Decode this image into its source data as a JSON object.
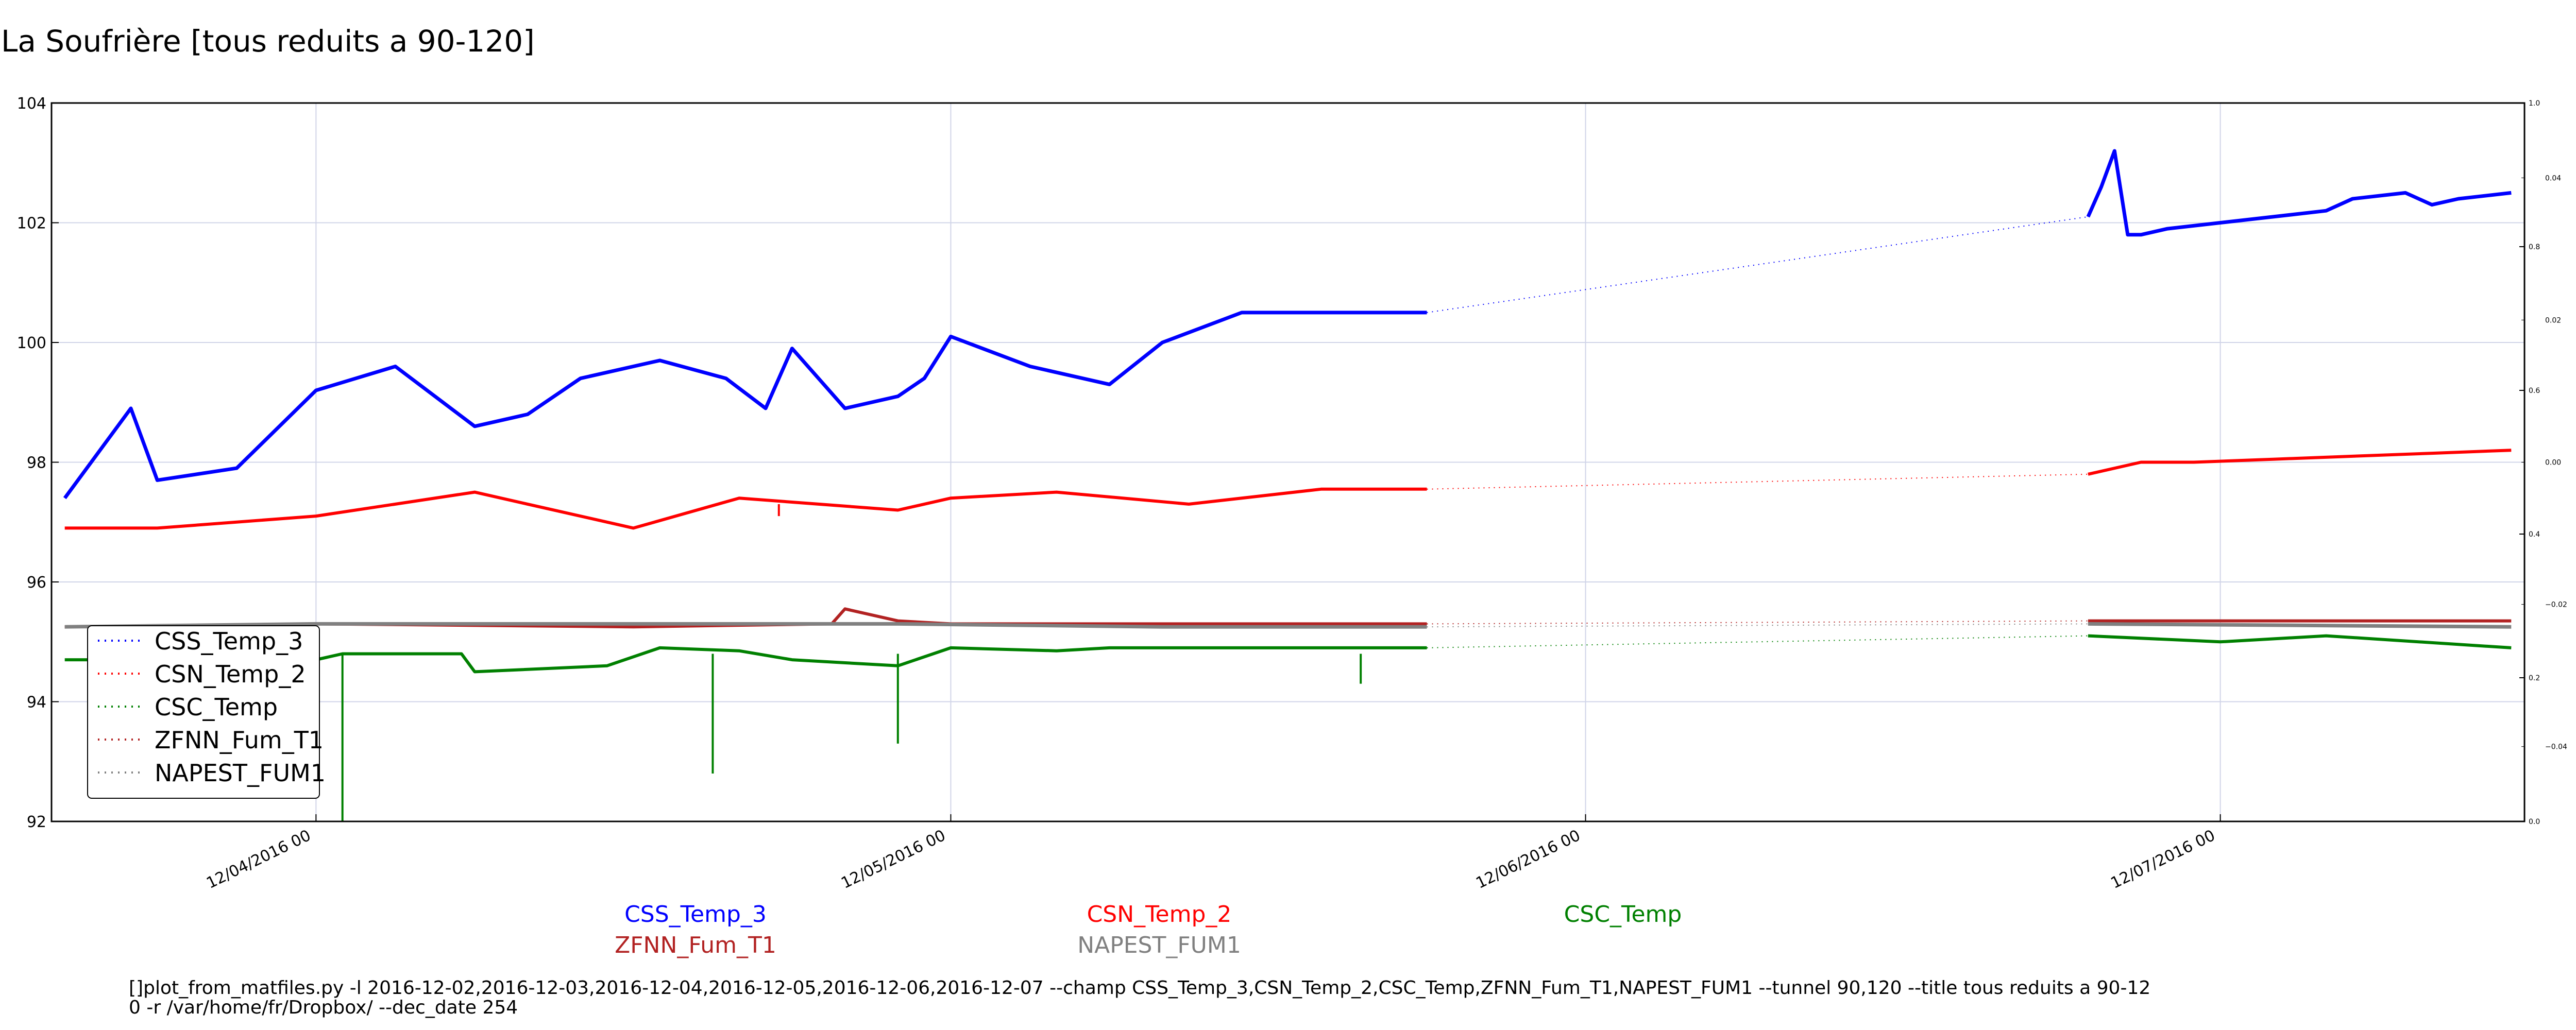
{
  "chart_data": {
    "type": "line",
    "title": "La Soufrière [tous reduits a 90-120]",
    "xlabel": "",
    "ylabel": "",
    "xlim": [
      "2016-12-03 14:00",
      "2016-12-07 11:30"
    ],
    "ylim": [
      92,
      104
    ],
    "yticks": [
      "92",
      "94",
      "96",
      "98",
      "100",
      "102",
      "104"
    ],
    "xticks": [
      {
        "x": "2016-12-04 00:00",
        "label": "12/04/2016 00"
      },
      {
        "x": "2016-12-05 00:00",
        "label": "12/05/2016 00"
      },
      {
        "x": "2016-12-06 00:00",
        "label": "12/06/2016 00"
      },
      {
        "x": "2016-12-07 00:00",
        "label": "12/07/2016 00"
      }
    ],
    "right_axis": {
      "outer_ticks": [
        "0.0",
        "0.2",
        "0.4",
        "0.6",
        "0.8",
        "1.0"
      ],
      "inner_ticks": [
        "−0.04",
        "−0.02",
        "0.00",
        "0.02",
        "0.04"
      ]
    },
    "grid": true,
    "legend_position": "lower-left",
    "gap": [
      "2016-12-05 18:00",
      "2016-12-06 19:30"
    ],
    "series": [
      {
        "name": "CSS_Temp_3",
        "color": "#0000ff",
        "x": [
          "2016-12-03 14:30",
          "2016-12-03 16:00",
          "2016-12-03 17:00",
          "2016-12-03 18:00",
          "2016-12-03 21:00",
          "2016-12-04 00:00",
          "2016-12-04 03:00",
          "2016-12-04 06:00",
          "2016-12-04 08:00",
          "2016-12-04 10:00",
          "2016-12-04 13:00",
          "2016-12-04 15:30",
          "2016-12-04 17:00",
          "2016-12-04 18:00",
          "2016-12-04 20:00",
          "2016-12-04 22:00",
          "2016-12-04 23:00",
          "2016-12-05 00:00",
          "2016-12-05 03:00",
          "2016-12-05 06:00",
          "2016-12-05 08:00",
          "2016-12-05 11:00",
          "2016-12-05 14:00",
          "2016-12-05 16:00",
          "2016-12-05 18:00",
          "2016-12-06 19:00",
          "2016-12-06 19:30",
          "2016-12-06 20:00",
          "2016-12-06 20:30",
          "2016-12-06 21:00",
          "2016-12-06 22:00",
          "2016-12-07 00:00",
          "2016-12-07 02:00",
          "2016-12-07 04:00",
          "2016-12-07 05:00",
          "2016-12-07 07:00",
          "2016-12-07 08:00",
          "2016-12-07 09:00",
          "2016-12-07 11:00"
        ],
        "y": [
          97.4,
          98.3,
          98.9,
          97.7,
          97.9,
          99.2,
          99.6,
          98.6,
          98.8,
          99.4,
          99.7,
          99.4,
          98.9,
          99.9,
          98.9,
          99.1,
          99.4,
          100.1,
          99.6,
          99.3,
          100.0,
          100.5,
          100.5,
          100.5,
          100.5,
          102.1,
          102.6,
          103.2,
          101.8,
          101.8,
          101.9,
          102.0,
          102.1,
          102.2,
          102.4,
          102.5,
          102.3,
          102.4,
          102.5
        ]
      },
      {
        "name": "CSN_Temp_2",
        "color": "#ff0000",
        "x": [
          "2016-12-03 14:30",
          "2016-12-03 18:00",
          "2016-12-04 00:00",
          "2016-12-04 06:00",
          "2016-12-04 08:00",
          "2016-12-04 12:00",
          "2016-12-04 16:00",
          "2016-12-04 19:00",
          "2016-12-04 22:00",
          "2016-12-05 00:00",
          "2016-12-05 04:00",
          "2016-12-05 09:00",
          "2016-12-05 14:00",
          "2016-12-05 18:00",
          "2016-12-06 19:00",
          "2016-12-06 21:00",
          "2016-12-06 23:00",
          "2016-12-07 02:00",
          "2016-12-07 05:00",
          "2016-12-07 08:00",
          "2016-12-07 11:00"
        ],
        "y": [
          96.9,
          96.9,
          97.1,
          97.5,
          97.3,
          96.9,
          97.4,
          97.3,
          97.2,
          97.4,
          97.5,
          97.3,
          97.55,
          97.55,
          97.8,
          98.0,
          98.0,
          98.05,
          98.1,
          98.15,
          98.2
        ]
      },
      {
        "name": "CSC_Temp",
        "color": "#008000",
        "x": [
          "2016-12-03 14:30",
          "2016-12-04 00:00",
          "2016-12-04 01:00",
          "2016-12-04 03:00",
          "2016-12-04 04:30",
          "2016-12-04 05:30",
          "2016-12-04 06:00",
          "2016-12-04 11:00",
          "2016-12-04 13:00",
          "2016-12-04 16:00",
          "2016-12-04 18:00",
          "2016-12-04 22:00",
          "2016-12-05 00:00",
          "2016-12-05 04:00",
          "2016-12-05 06:00",
          "2016-12-05 10:00",
          "2016-12-05 18:00",
          "2016-12-06 19:00",
          "2016-12-07 00:00",
          "2016-12-07 04:00",
          "2016-12-07 11:00"
        ],
        "y": [
          94.7,
          94.7,
          94.8,
          94.8,
          94.8,
          94.8,
          94.5,
          94.6,
          94.9,
          94.85,
          94.7,
          94.6,
          94.9,
          94.85,
          94.9,
          94.9,
          94.9,
          95.1,
          95.0,
          95.1,
          94.9
        ]
      },
      {
        "name": "ZFNN_Fum_T1",
        "color": "#b22222",
        "x": [
          "2016-12-03 14:30",
          "2016-12-04 00:00",
          "2016-12-04 12:00",
          "2016-12-04 19:30",
          "2016-12-04 20:00",
          "2016-12-04 22:00",
          "2016-12-05 00:00",
          "2016-12-05 08:00",
          "2016-12-05 18:00",
          "2016-12-06 19:00",
          "2016-12-07 00:00",
          "2016-12-07 11:00"
        ],
        "y": [
          95.25,
          95.3,
          95.25,
          95.3,
          95.55,
          95.35,
          95.3,
          95.3,
          95.3,
          95.35,
          95.35,
          95.35
        ]
      },
      {
        "name": "NAPEST_FUM1",
        "color": "#808080",
        "x": [
          "2016-12-03 14:30",
          "2016-12-04 00:00",
          "2016-12-04 12:00",
          "2016-12-04 22:00",
          "2016-12-05 08:00",
          "2016-12-05 18:00",
          "2016-12-06 19:00",
          "2016-12-07 11:00"
        ],
        "y": [
          95.25,
          95.3,
          95.3,
          95.3,
          95.25,
          95.25,
          95.3,
          95.25
        ]
      }
    ],
    "annotations": [
      {
        "name": "CSC_Temp spike",
        "x": "2016-12-04 01:00",
        "y": 92.0
      },
      {
        "name": "CSC_Temp spike",
        "x": "2016-12-04 15:00",
        "y": 92.8
      },
      {
        "name": "CSC_Temp spike",
        "x": "2016-12-04 22:00",
        "y": 93.3
      },
      {
        "name": "CSC_Temp spike",
        "x": "2016-12-05 15:30",
        "y": 94.3
      },
      {
        "name": "CSN_Temp_2 dip",
        "x": "2016-12-04 17:30",
        "y": 97.1
      }
    ],
    "legend": [
      "CSS_Temp_3",
      "CSN_Temp_2",
      "CSC_Temp",
      "ZFNN_Fum_T1",
      "NAPEST_FUM1"
    ],
    "bottom_labels": [
      {
        "text": "CSS_Temp_3",
        "color": "#0000ff"
      },
      {
        "text": "CSN_Temp_2",
        "color": "#ff0000"
      },
      {
        "text": "CSC_Temp",
        "color": "#008000"
      },
      {
        "text": "ZFNN_Fum_T1",
        "color": "#b22222"
      },
      {
        "text": "NAPEST_FUM1",
        "color": "#808080"
      }
    ],
    "command_lines": [
      "[]plot_from_matfiles.py -l 2016-12-02,2016-12-03,2016-12-04,2016-12-05,2016-12-06,2016-12-07 --champ CSS_Temp_3,CSN_Temp_2,CSC_Temp,ZFNN_Fum_T1,NAPEST_FUM1 --tunnel 90,120 --title tous reduits a 90-12",
      "0 -r /var/home/fr/Dropbox/ --dec_date 254"
    ]
  }
}
